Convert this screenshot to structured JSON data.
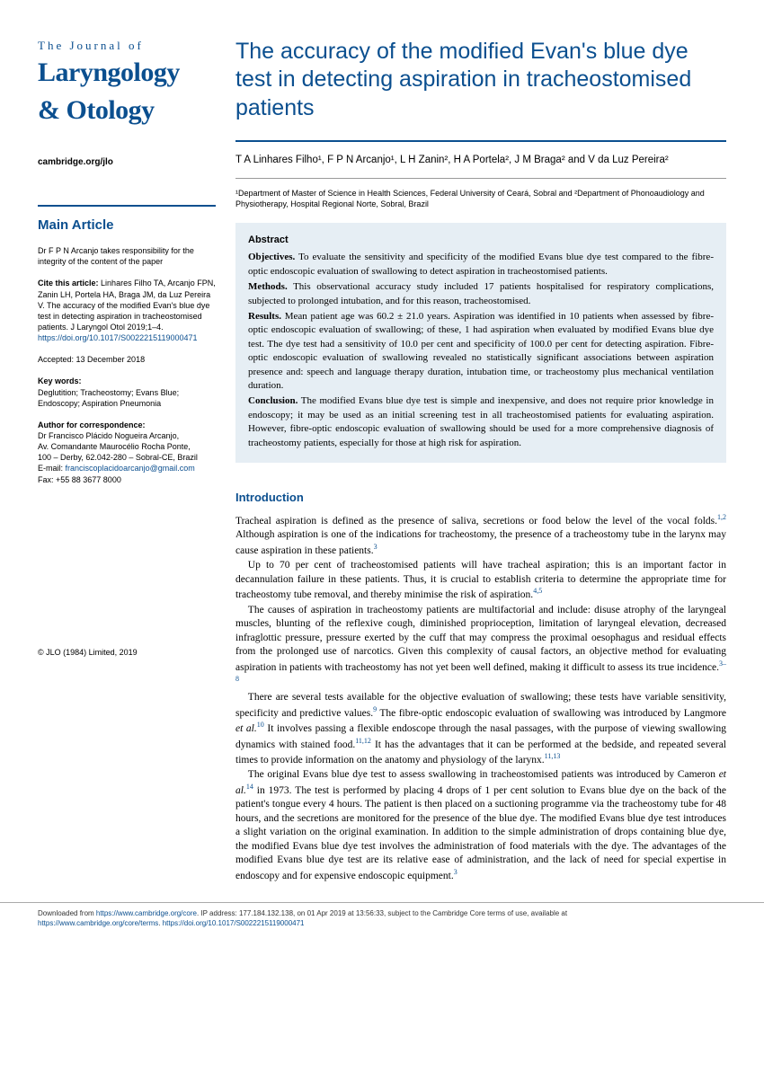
{
  "journal": {
    "tagline": "The Journal of",
    "name1": "Laryngology",
    "name2": "& Otology",
    "url": "cambridge.org/jlo"
  },
  "sidebar": {
    "section_label": "Main Article",
    "responsibility": "Dr F P N Arcanjo takes responsibility for the integrity of the content of the paper",
    "cite_label": "Cite this article:",
    "cite_text": "Linhares Filho TA, Arcanjo FPN, Zanin LH, Portela HA, Braga JM, da Luz Pereira V. The accuracy of the modified Evan's blue dye test in detecting aspiration in tracheostomised patients. J Laryngol Otol 2019;1–4.",
    "doi_label": "https://doi.org/10.1017/",
    "doi_suffix": "S0022215119000471",
    "accepted": "Accepted: 13 December 2018",
    "keywords_label": "Key words:",
    "keywords": "Deglutition; Tracheostomy; Evans Blue; Endoscopy; Aspiration Pneumonia",
    "correspondence_label": "Author for correspondence:",
    "correspondence_name": "Dr Francisco Plácido Nogueira Arcanjo,",
    "correspondence_addr1": "Av. Comandante Maurocélio Rocha Ponte,",
    "correspondence_addr2": "100 – Derby, 62.042-280 – Sobral-CE, Brazil",
    "correspondence_email_label": "E-mail:",
    "correspondence_email": "franciscoplacidoarcanjo@gmail.com",
    "correspondence_fax": "Fax: +55 88 3677 8000",
    "copyright": "© JLO (1984) Limited, 2019"
  },
  "article": {
    "title": "The accuracy of the modified Evan's blue dye test in detecting aspiration in tracheostomised patients",
    "authors": "T A Linhares Filho¹, F P N Arcanjo¹, L H Zanin², H A Portela², J M Braga² and V da Luz Pereira²",
    "affiliations": "¹Department of Master of Science in Health Sciences, Federal University of Ceará, Sobral and ²Department of Phonoaudiology and Physiotherapy, Hospital Regional Norte, Sobral, Brazil",
    "abstract": {
      "heading": "Abstract",
      "objectives_label": "Objectives.",
      "objectives": "To evaluate the sensitivity and specificity of the modified Evans blue dye test compared to the fibre-optic endoscopic evaluation of swallowing to detect aspiration in tracheostomised patients.",
      "methods_label": "Methods.",
      "methods": "This observational accuracy study included 17 patients hospitalised for respiratory complications, subjected to prolonged intubation, and for this reason, tracheostomised.",
      "results_label": "Results.",
      "results": "Mean patient age was 60.2 ± 21.0 years. Aspiration was identified in 10 patients when assessed by fibre-optic endoscopic evaluation of swallowing; of these, 1 had aspiration when evaluated by modified Evans blue dye test. The dye test had a sensitivity of 10.0 per cent and specificity of 100.0 per cent for detecting aspiration. Fibre-optic endoscopic evaluation of swallowing revealed no statistically significant associations between aspiration presence and: speech and language therapy duration, intubation time, or tracheostomy plus mechanical ventilation duration.",
      "conclusion_label": "Conclusion.",
      "conclusion": "The modified Evans blue dye test is simple and inexpensive, and does not require prior knowledge in endoscopy; it may be used as an initial screening test in all tracheostomised patients for evaluating aspiration. However, fibre-optic endoscopic evaluation of swallowing should be used for a more comprehensive diagnosis of tracheostomy patients, especially for those at high risk for aspiration."
    },
    "introduction_heading": "Introduction",
    "introduction": {
      "p1_a": "Tracheal aspiration is defined as the presence of saliva, secretions or food below the level of the vocal folds.",
      "p1_ref1": "1,2",
      "p1_b": " Although aspiration is one of the indications for tracheostomy, the presence of a tracheostomy tube in the larynx may cause aspiration in these patients.",
      "p1_ref2": "3",
      "p2_a": "Up to 70 per cent of tracheostomised patients will have tracheal aspiration; this is an important factor in decannulation failure in these patients. Thus, it is crucial to establish criteria to determine the appropriate time for tracheostomy tube removal, and thereby minimise the risk of aspiration.",
      "p2_ref": "4,5",
      "p3_a": "The causes of aspiration in tracheostomy patients are multifactorial and include: disuse atrophy of the laryngeal muscles, blunting of the reflexive cough, diminished proprioception, limitation of laryngeal elevation, decreased infraglottic pressure, pressure exerted by the cuff that may compress the proximal oesophagus and residual effects from the prolonged use of narcotics. Given this complexity of causal factors, an objective method for evaluating aspiration in patients with tracheostomy has not yet been well defined, making it difficult to assess its true incidence.",
      "p3_ref": "3–8",
      "p4_a": "There are several tests available for the objective evaluation of swallowing; these tests have variable sensitivity, specificity and predictive values.",
      "p4_ref1": "9",
      "p4_b": " The fibre-optic endoscopic evaluation of swallowing was introduced by Langmore ",
      "p4_etal1": "et al.",
      "p4_ref2": "10",
      "p4_c": " It involves passing a flexible endoscope through the nasal passages, with the purpose of viewing swallowing dynamics with stained food.",
      "p4_ref3": "11,12",
      "p4_d": " It has the advantages that it can be performed at the bedside, and repeated several times to provide information on the anatomy and physiology of the larynx.",
      "p4_ref4": "11,13",
      "p5_a": "The original Evans blue dye test to assess swallowing in tracheostomised patients was introduced by Cameron ",
      "p5_etal": "et al.",
      "p5_ref1": "14",
      "p5_b": " in 1973. The test is performed by placing 4 drops of 1 per cent solution to Evans blue dye on the back of the patient's tongue every 4 hours. The patient is then placed on a suctioning programme via the tracheostomy tube for 48 hours, and the secretions are monitored for the presence of the blue dye. The modified Evans blue dye test introduces a slight variation on the original examination. In addition to the simple administration of drops containing blue dye, the modified Evans blue dye test involves the administration of food materials with the dye. The advantages of the modified Evans blue dye test are its relative ease of administration, and the lack of need for special expertise in endoscopy and for expensive endoscopic equipment.",
      "p5_ref2": "3"
    }
  },
  "footer": {
    "line1_a": "Downloaded from ",
    "line1_link1": "https://www.cambridge.org/core",
    "line1_b": ". IP address: 177.184.132.138, on 01 Apr 2019 at 13:56:33, subject to the Cambridge Core terms of use, available at",
    "line2_link1": "https://www.cambridge.org/core/terms",
    "line2_a": ". ",
    "line2_link2": "https://doi.org/10.1017/S0022215119000471"
  }
}
